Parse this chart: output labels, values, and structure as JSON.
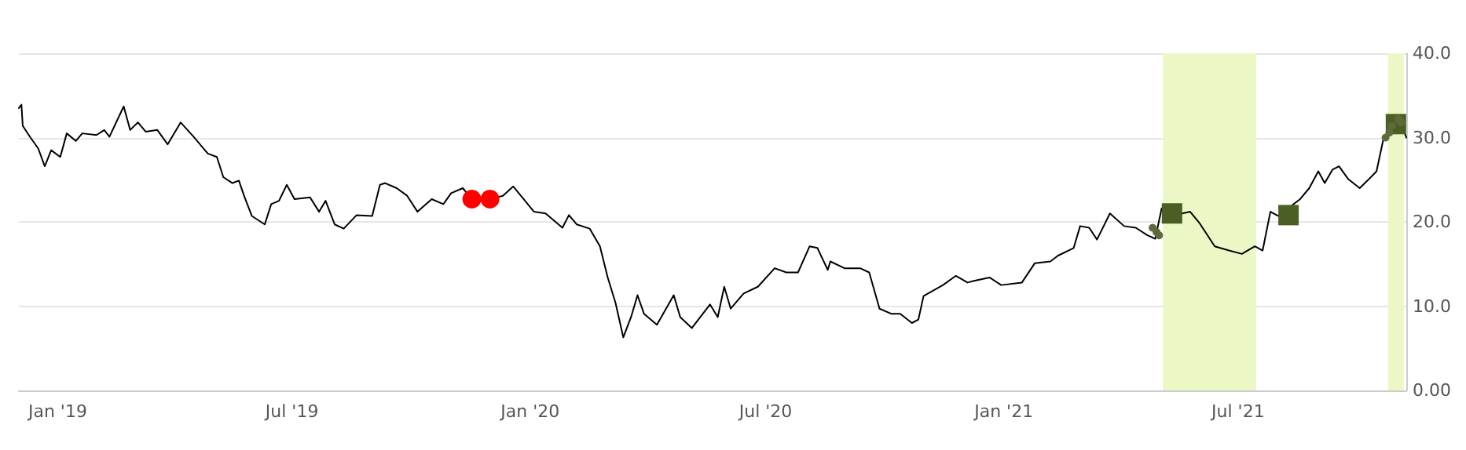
{
  "chart_data": {
    "type": "line",
    "xlim": [
      "2018-12-02",
      "2021-11-08"
    ],
    "ylim": [
      0,
      40
    ],
    "xticks": [
      {
        "value": "2019-01-01",
        "label": "Jan '19"
      },
      {
        "value": "2019-07-01",
        "label": "Jul '19"
      },
      {
        "value": "2020-01-01",
        "label": "Jan '20"
      },
      {
        "value": "2020-07-01",
        "label": "Jul '20"
      },
      {
        "value": "2021-01-01",
        "label": "Jan '21"
      },
      {
        "value": "2021-07-01",
        "label": "Jul '21"
      }
    ],
    "yticks": [
      {
        "value": 0,
        "label": "0.00"
      },
      {
        "value": 10,
        "label": "10.0"
      },
      {
        "value": 20,
        "label": "20.0"
      },
      {
        "value": 30,
        "label": "30.0"
      },
      {
        "value": 40,
        "label": "40.0"
      }
    ],
    "grid": "y",
    "bands": [
      {
        "axis": "x",
        "from": "2021-05-04",
        "to": "2021-07-15",
        "color": "#ebf8c6"
      },
      {
        "axis": "x",
        "from": "2021-10-25",
        "to": "2021-11-06",
        "color": "#ebf8c6"
      }
    ],
    "series": [
      {
        "color": "#000000",
        "marker": "none",
        "line_style": "solid",
        "x": [
          "2018-12-02",
          "2018-12-04",
          "2018-12-05",
          "2018-12-11",
          "2018-12-17",
          "2018-12-22",
          "2018-12-27",
          "2019-01-03",
          "2019-01-08",
          "2019-01-15",
          "2019-01-20",
          "2019-01-31",
          "2019-02-06",
          "2019-02-10",
          "2019-02-21",
          "2019-02-26",
          "2019-03-04",
          "2019-03-10",
          "2019-03-19",
          "2019-03-27",
          "2019-04-06",
          "2019-04-16",
          "2019-04-27",
          "2019-05-04",
          "2019-05-09",
          "2019-05-16",
          "2019-05-21",
          "2019-05-25",
          "2019-05-31",
          "2019-06-10",
          "2019-06-15",
          "2019-06-21",
          "2019-06-27",
          "2019-07-03",
          "2019-07-15",
          "2019-07-22",
          "2019-07-27",
          "2019-08-03",
          "2019-08-10",
          "2019-08-20",
          "2019-09-01",
          "2019-09-07",
          "2019-09-11",
          "2019-09-20",
          "2019-09-28",
          "2019-10-06",
          "2019-10-17",
          "2019-10-26",
          "2019-11-01",
          "2019-11-10",
          "2019-11-17",
          "2019-12-01",
          "2019-12-11",
          "2019-12-19",
          "2019-12-27",
          "2020-01-04",
          "2020-01-13",
          "2020-01-26",
          "2020-01-31",
          "2020-02-06",
          "2020-02-16",
          "2020-02-24",
          "2020-03-01",
          "2020-03-07",
          "2020-03-13",
          "2020-03-19",
          "2020-03-24",
          "2020-03-29",
          "2020-04-08",
          "2020-04-21",
          "2020-04-26",
          "2020-05-05",
          "2020-05-19",
          "2020-05-25",
          "2020-05-30",
          "2020-06-04",
          "2020-06-14",
          "2020-06-25",
          "2020-07-08",
          "2020-07-17",
          "2020-07-26",
          "2020-08-04",
          "2020-08-10",
          "2020-08-18",
          "2020-08-20",
          "2020-08-31",
          "2020-09-12",
          "2020-09-19",
          "2020-09-27",
          "2020-10-06",
          "2020-10-13",
          "2020-10-22",
          "2020-10-27",
          "2020-10-31",
          "2020-11-15",
          "2020-11-25",
          "2020-12-04",
          "2020-12-09",
          "2020-12-21",
          "2020-12-30",
          "2021-01-15",
          "2021-01-25",
          "2021-02-06",
          "2021-02-12",
          "2021-02-24",
          "2021-03-01",
          "2021-03-08",
          "2021-03-14",
          "2021-03-24",
          "2021-04-04",
          "2021-04-13",
          "2021-04-22",
          "2021-04-28",
          "2021-05-03",
          "2021-05-19",
          "2021-05-25",
          "2021-06-01",
          "2021-06-13",
          "2021-06-24",
          "2021-07-04",
          "2021-07-14",
          "2021-07-20",
          "2021-07-26",
          "2021-08-01",
          "2021-08-18",
          "2021-08-25",
          "2021-09-01",
          "2021-09-06",
          "2021-09-12",
          "2021-09-17",
          "2021-09-24",
          "2021-10-03",
          "2021-10-09",
          "2021-10-16",
          "2021-10-21",
          "2021-10-30",
          "2021-11-06",
          "2021-11-08"
        ],
        "values": [
          33.5,
          33.9,
          31.4,
          30.0,
          28.7,
          26.6,
          28.5,
          27.7,
          30.5,
          29.6,
          30.5,
          30.3,
          30.9,
          30.1,
          33.7,
          30.9,
          31.8,
          30.7,
          30.9,
          29.2,
          31.8,
          30.1,
          28.1,
          27.7,
          25.3,
          24.6,
          24.9,
          23.1,
          20.7,
          19.7,
          22.1,
          22.5,
          24.4,
          22.7,
          22.9,
          21.2,
          22.5,
          19.7,
          19.2,
          20.8,
          20.7,
          24.4,
          24.6,
          24.0,
          23.1,
          21.2,
          22.7,
          22.1,
          23.4,
          24.0,
          22.7,
          22.7,
          23.1,
          24.2,
          22.7,
          21.2,
          21.0,
          19.3,
          20.8,
          19.7,
          19.2,
          17.1,
          13.4,
          10.4,
          6.3,
          8.7,
          11.3,
          9.1,
          7.8,
          11.3,
          8.7,
          7.4,
          10.2,
          8.7,
          12.3,
          9.7,
          11.5,
          12.3,
          14.5,
          14.0,
          14.0,
          17.1,
          16.9,
          14.3,
          15.3,
          14.5,
          14.5,
          14.0,
          9.7,
          9.1,
          9.1,
          8.0,
          8.4,
          11.2,
          12.5,
          13.6,
          12.8,
          13.0,
          13.4,
          12.5,
          12.8,
          15.1,
          15.3,
          16.0,
          16.9,
          19.5,
          19.3,
          17.9,
          21.0,
          19.5,
          19.3,
          18.4,
          18.0,
          21.6,
          21.0,
          21.2,
          19.9,
          17.1,
          16.6,
          16.2,
          17.1,
          16.6,
          21.2,
          20.7,
          22.7,
          24.0,
          26.0,
          24.6,
          26.2,
          26.6,
          25.1,
          24.0,
          24.9,
          26.0,
          29.6,
          32.0,
          30.9,
          30.0
        ]
      },
      {
        "type": "scatter",
        "color": "#ff0000",
        "marker": "circle",
        "x": [
          "2019-11-17",
          "2019-12-01"
        ],
        "values": [
          22.7,
          22.7
        ]
      },
      {
        "type": "scatter",
        "color": "#4b5e24",
        "marker": "square",
        "x": [
          "2021-05-11",
          "2021-08-09",
          "2021-10-31"
        ],
        "values": [
          21.0,
          20.8,
          31.6
        ]
      },
      {
        "type": "scatter",
        "color": "#5d6b3c",
        "marker": "circle",
        "x": [
          "2021-04-26",
          "2021-04-29",
          "2021-05-01",
          "2021-10-23",
          "2021-10-26",
          "2021-10-28",
          "2021-11-02",
          "2021-11-04"
        ],
        "values": [
          19.3,
          18.8,
          18.4,
          30.0,
          30.6,
          31.4,
          32.2,
          31.8
        ]
      }
    ]
  }
}
